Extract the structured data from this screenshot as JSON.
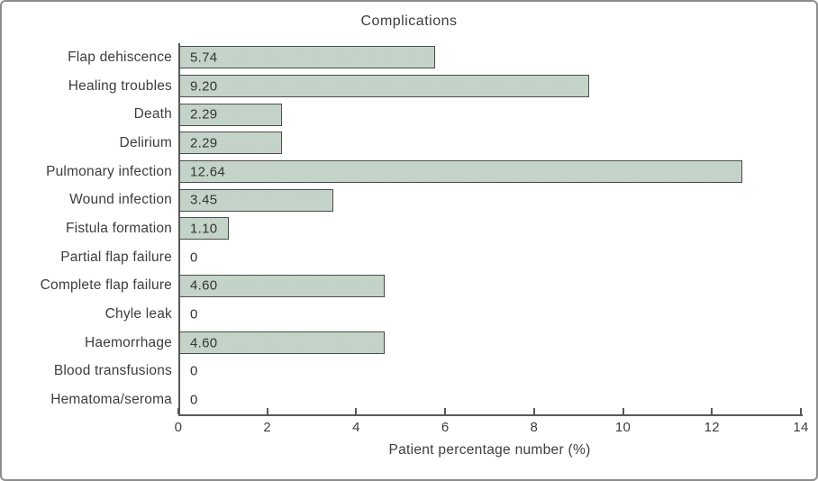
{
  "chart_data": {
    "type": "bar",
    "orientation": "horizontal",
    "title": "Complications",
    "xlabel": "Patient percentage number (%)",
    "categories": [
      "Flap dehiscence",
      "Healing troubles",
      "Death",
      "Delirium",
      "Pulmonary infection",
      "Wound infection",
      "Fistula formation",
      "Partial flap failure",
      "Complete flap failure",
      "Chyle leak",
      "Haemorrhage",
      "Blood transfusions",
      "Hematoma/seroma"
    ],
    "values": [
      5.74,
      9.2,
      2.29,
      2.29,
      12.64,
      3.45,
      1.1,
      0,
      4.6,
      0,
      4.6,
      0,
      0
    ],
    "value_labels": [
      "5.74",
      "9.20",
      "2.29",
      "2.29",
      "12.64",
      "3.45",
      "1.10",
      "0",
      "4.60",
      "0",
      "4.60",
      "0",
      "0"
    ],
    "xlim": [
      0,
      14
    ],
    "xticks": [
      0,
      2,
      4,
      6,
      8,
      10,
      12,
      14
    ],
    "grid": false,
    "legend": false,
    "colors": {
      "bar_fill": "#c5d4ca",
      "bar_border": "#4d4d4d",
      "axis": "#595959",
      "text": "#3d3d3d",
      "figure_border": "#8c8c8c"
    }
  }
}
